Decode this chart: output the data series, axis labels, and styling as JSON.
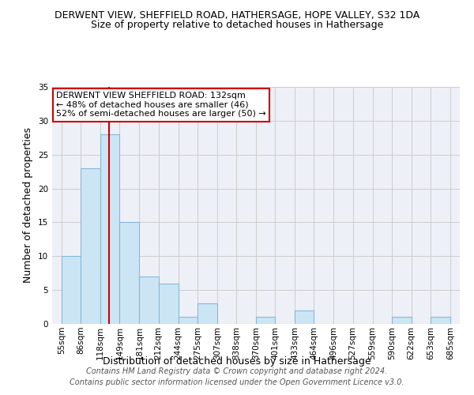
{
  "title": "DERWENT VIEW, SHEFFIELD ROAD, HATHERSAGE, HOPE VALLEY, S32 1DA",
  "subtitle": "Size of property relative to detached houses in Hathersage",
  "xlabel": "Distribution of detached houses by size in Hathersage",
  "ylabel": "Number of detached properties",
  "footer_line1": "Contains HM Land Registry data © Crown copyright and database right 2024.",
  "footer_line2": "Contains public sector information licensed under the Open Government Licence v3.0.",
  "annotation_line1": "DERWENT VIEW SHEFFIELD ROAD: 132sqm",
  "annotation_line2": "← 48% of detached houses are smaller (46)",
  "annotation_line3": "52% of semi-detached houses are larger (50) →",
  "bar_edges": [
    55,
    86,
    118,
    149,
    181,
    212,
    244,
    275,
    307,
    338,
    370,
    401,
    433,
    464,
    496,
    527,
    559,
    590,
    622,
    653,
    685
  ],
  "bar_heights": [
    10,
    23,
    28,
    15,
    7,
    6,
    1,
    3,
    0,
    0,
    1,
    0,
    2,
    0,
    0,
    0,
    0,
    1,
    0,
    1
  ],
  "bar_color": "#cce5f5",
  "bar_edge_color": "#85b8d8",
  "property_line_x": 132,
  "property_line_color": "#cc0000",
  "ylim": [
    0,
    35
  ],
  "yticks": [
    0,
    5,
    10,
    15,
    20,
    25,
    30,
    35
  ],
  "grid_color": "#cccccc",
  "background_color": "#eef0f8",
  "title_fontsize": 9,
  "subtitle_fontsize": 9,
  "annotation_fontsize": 8,
  "tick_fontsize": 7.5,
  "axis_label_fontsize": 9,
  "footer_fontsize": 7
}
